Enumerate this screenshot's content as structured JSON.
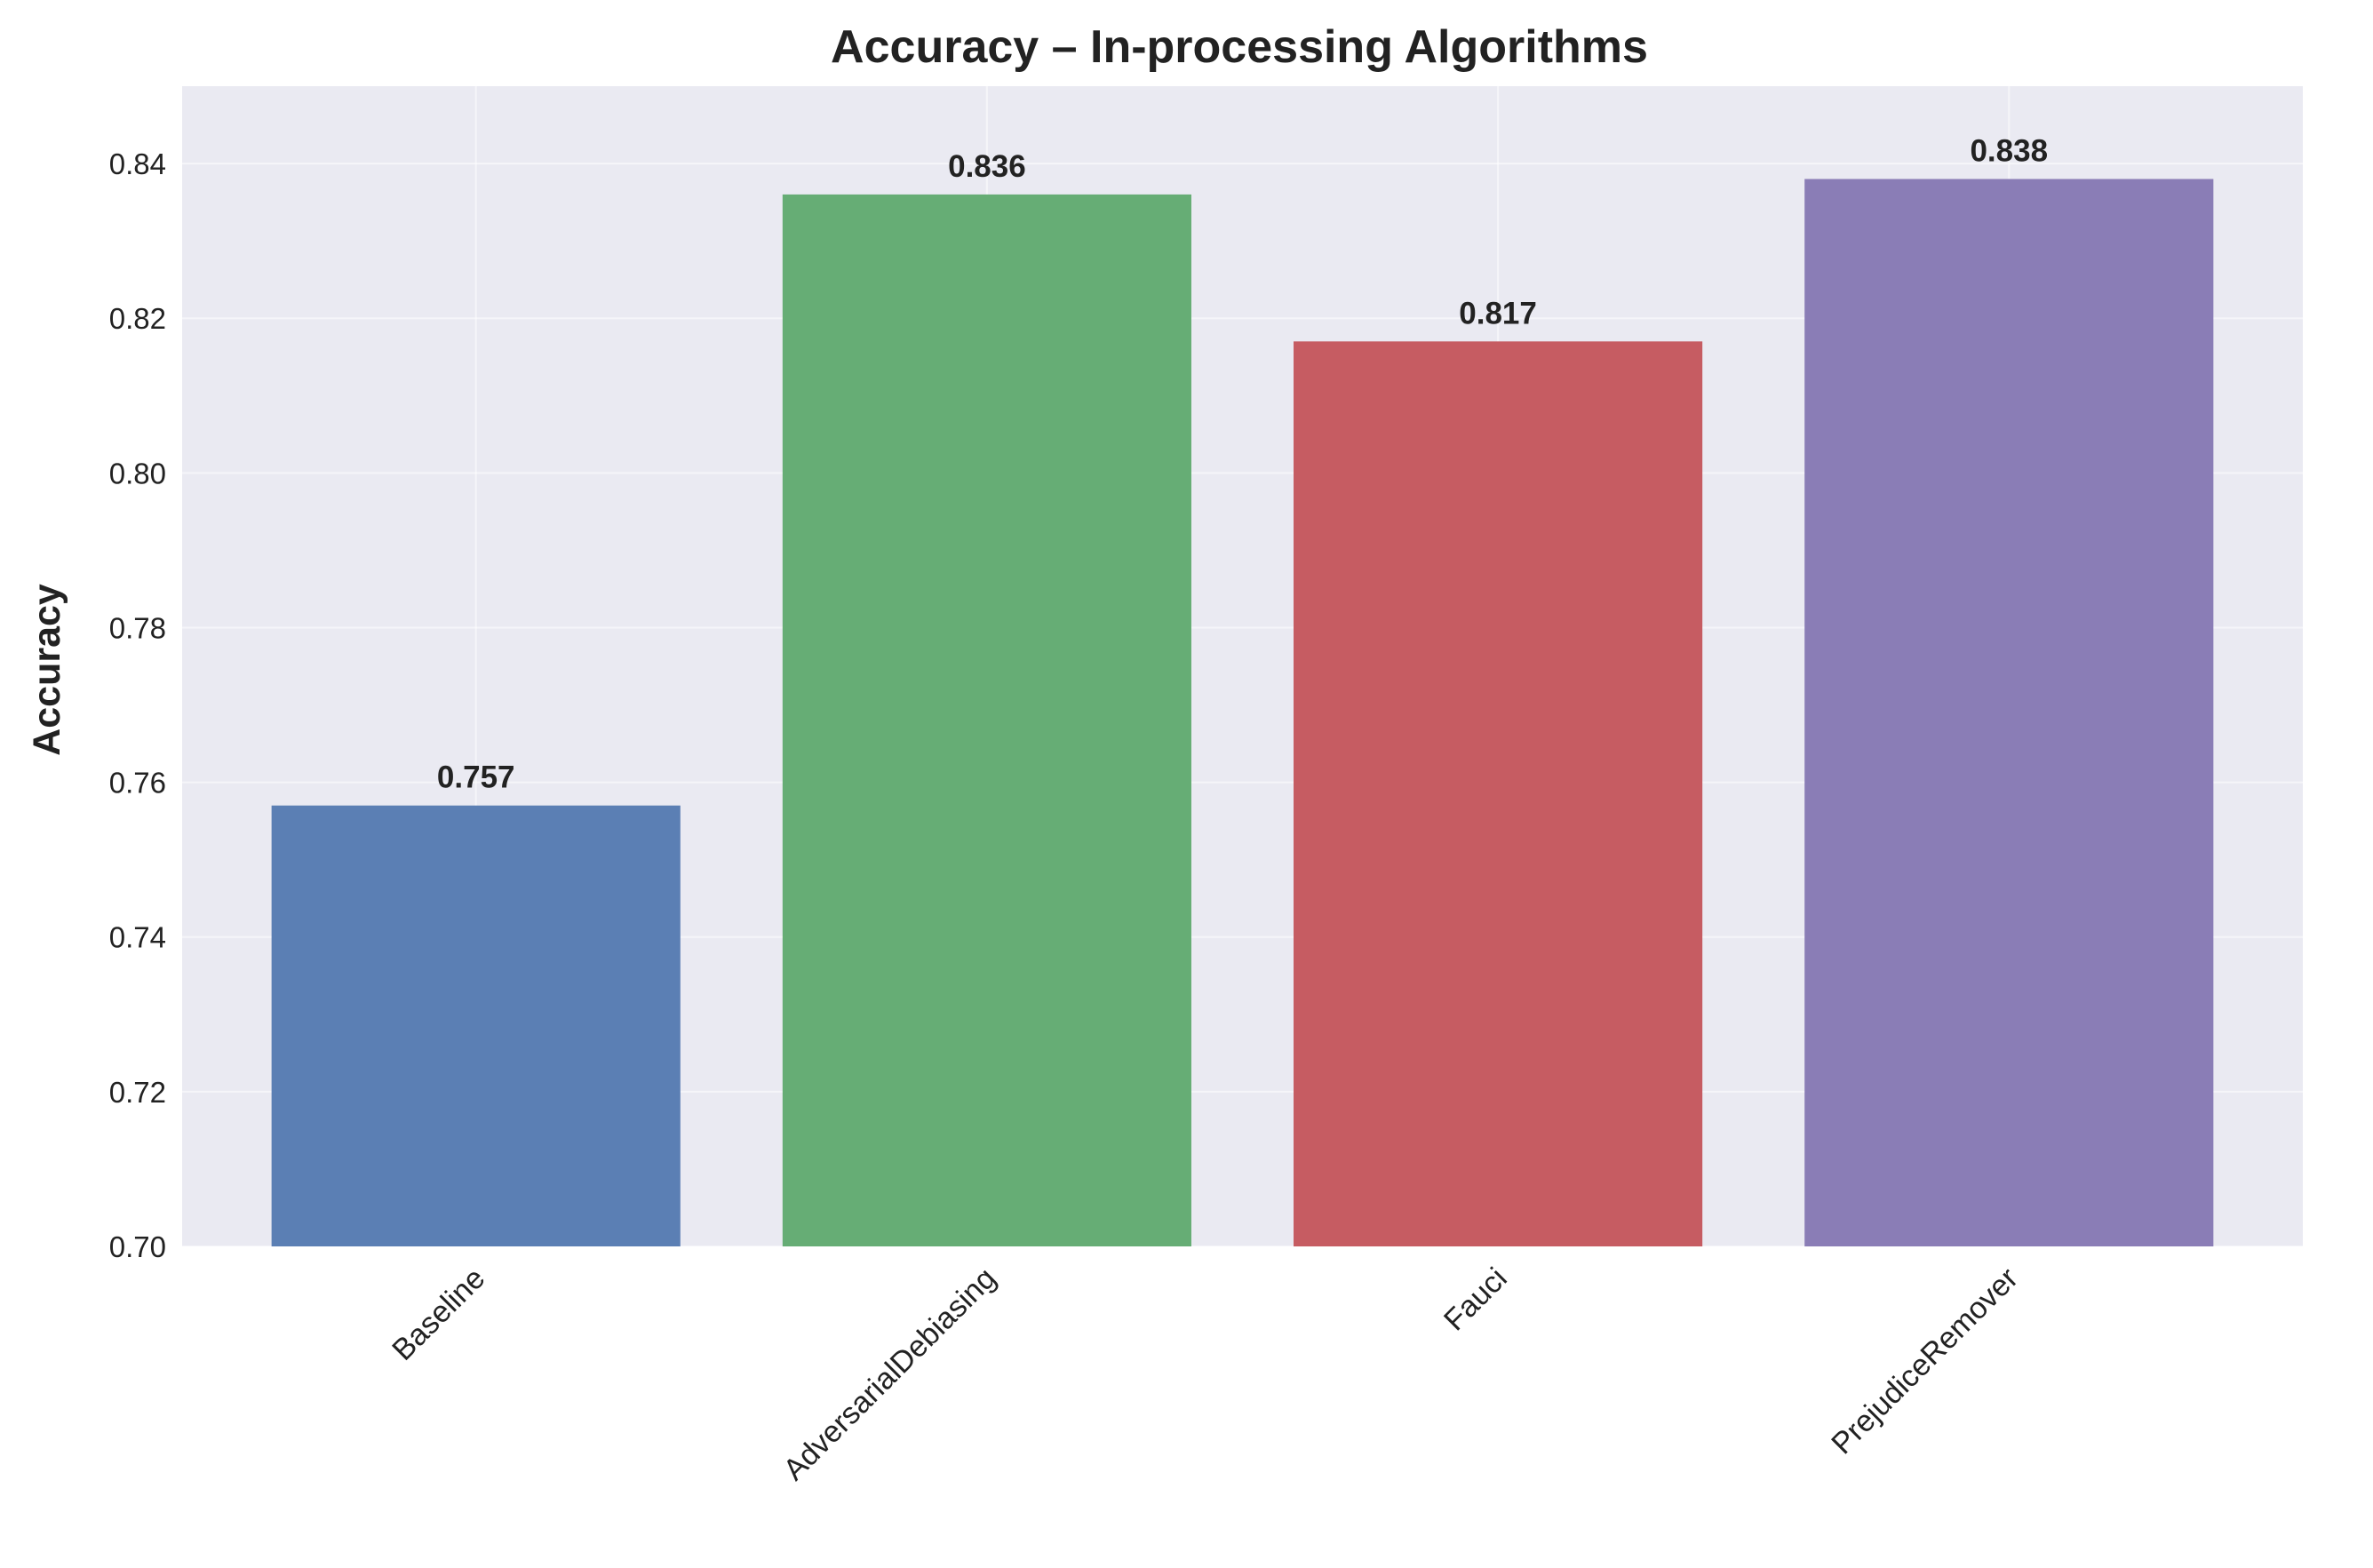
{
  "chart_data": {
    "type": "bar",
    "title": "Accuracy – In-processing Algorithms",
    "xlabel": "",
    "ylabel": "Accuracy",
    "categories": [
      "Baseline",
      "AdversarialDebiasing",
      "Fauci",
      "PrejudiceRemover"
    ],
    "values": [
      0.757,
      0.836,
      0.817,
      0.838
    ],
    "data_labels": [
      "0.757",
      "0.836",
      "0.817",
      "0.838"
    ],
    "ylim": [
      0.7,
      0.85
    ],
    "yticks": [
      0.7,
      0.72,
      0.74,
      0.76,
      0.78,
      0.8,
      0.82,
      0.84
    ],
    "ytick_labels": [
      "0.70",
      "0.72",
      "0.74",
      "0.76",
      "0.78",
      "0.80",
      "0.82",
      "0.84"
    ],
    "bar_colors": [
      "#5b7fb4",
      "#66ad75",
      "#c65c62",
      "#8a7db6"
    ],
    "plot_background": "#eaeaf2",
    "grid": true,
    "xtick_rotation": 45,
    "legend": "none"
  }
}
